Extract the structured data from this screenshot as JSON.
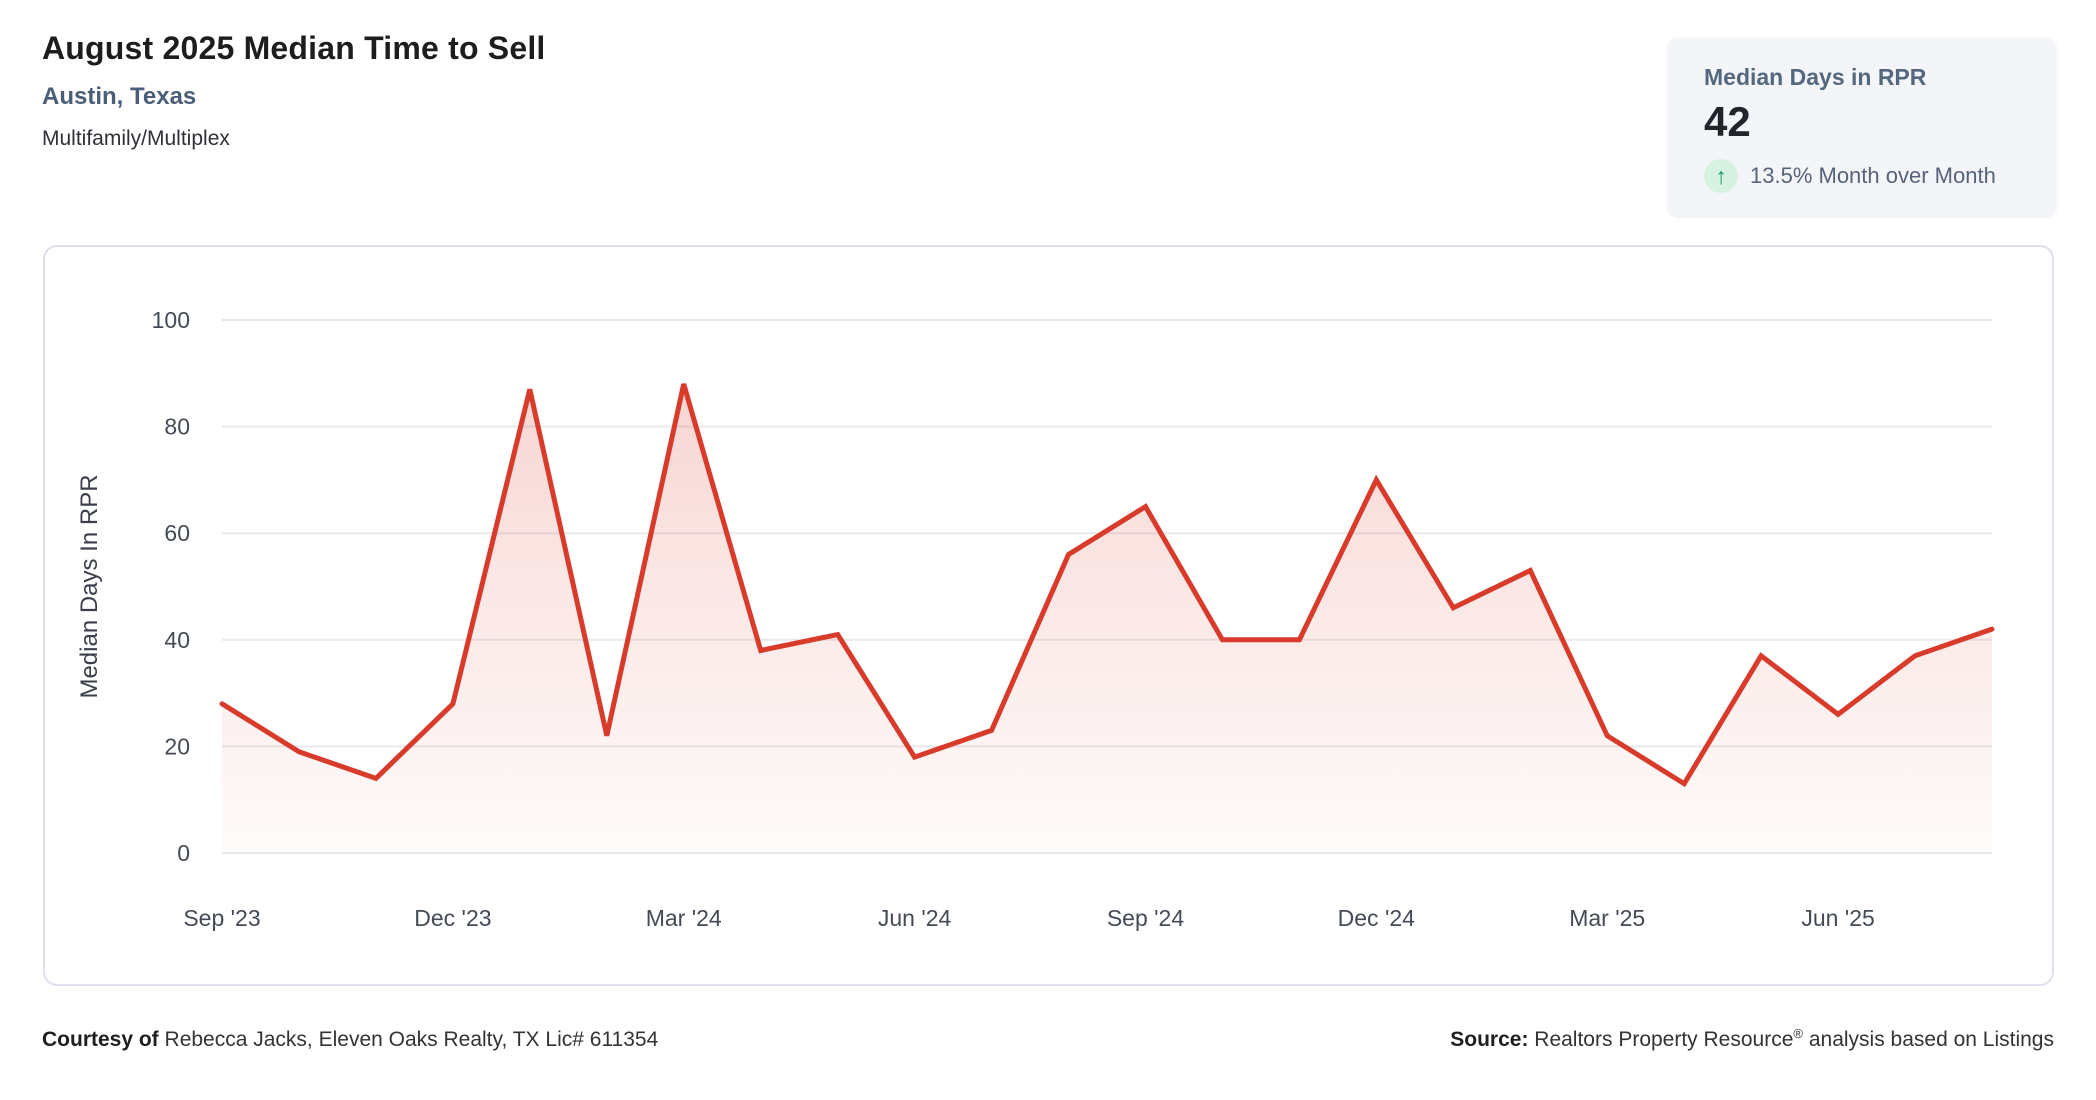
{
  "header": {
    "title": "August 2025 Median Time to Sell",
    "location": "Austin, Texas",
    "property_type": "Multifamily/Multiplex"
  },
  "stat_card": {
    "label": "Median Days in RPR",
    "value": "42",
    "trend_arrow": "↑",
    "trend_text": "13.5% Month over Month",
    "trend_arrow_color": "#149d5b",
    "trend_circle_color": "#d8f2e2"
  },
  "chart_data": {
    "type": "area",
    "title": "",
    "xlabel": "",
    "ylabel": "Median Days In RPR",
    "x": [
      "Sep '23",
      "Oct '23",
      "Nov '23",
      "Dec '23",
      "Jan '24",
      "Feb '24",
      "Mar '24",
      "Apr '24",
      "May '24",
      "Jun '24",
      "Jul '24",
      "Aug '24",
      "Sep '24",
      "Oct '24",
      "Nov '24",
      "Dec '24",
      "Jan '25",
      "Feb '25",
      "Mar '25",
      "Apr '25",
      "May '25",
      "Jun '25",
      "Jul '25",
      "Aug '25"
    ],
    "values": [
      28,
      19,
      14,
      28,
      87,
      22,
      88,
      38,
      41,
      18,
      23,
      56,
      65,
      40,
      40,
      70,
      46,
      53,
      22,
      13,
      37,
      26,
      37,
      42
    ],
    "x_ticks": [
      {
        "index": 0,
        "label": "Sep '23"
      },
      {
        "index": 3,
        "label": "Dec '23"
      },
      {
        "index": 6,
        "label": "Mar '24"
      },
      {
        "index": 9,
        "label": "Jun '24"
      },
      {
        "index": 12,
        "label": "Sep '24"
      },
      {
        "index": 15,
        "label": "Dec '24"
      },
      {
        "index": 18,
        "label": "Mar '25"
      },
      {
        "index": 21,
        "label": "Jun '25"
      }
    ],
    "y_ticks": [
      0,
      20,
      40,
      60,
      80,
      100
    ],
    "ylim": [
      0,
      100
    ],
    "grid": true,
    "legend": "none",
    "line_color": "#d93b2b",
    "fill_top_color": "rgba(217,59,43,0.24)",
    "fill_mid_color": "rgba(217,59,43,0.12)",
    "fill_bottom_color": "rgba(217,59,43,0.02)",
    "grid_color": "#e9e9ec",
    "tick_color": "#454b56",
    "axis_title_color": "#3a3f4a"
  },
  "footer": {
    "courtesy_prefix": "Courtesy of",
    "courtesy_text": " Rebecca Jacks, Eleven Oaks Realty, TX Lic# 611354",
    "source_prefix": "Source:",
    "source_name": " Realtors Property Resource",
    "source_reg": "®",
    "source_suffix": " analysis based on Listings"
  }
}
